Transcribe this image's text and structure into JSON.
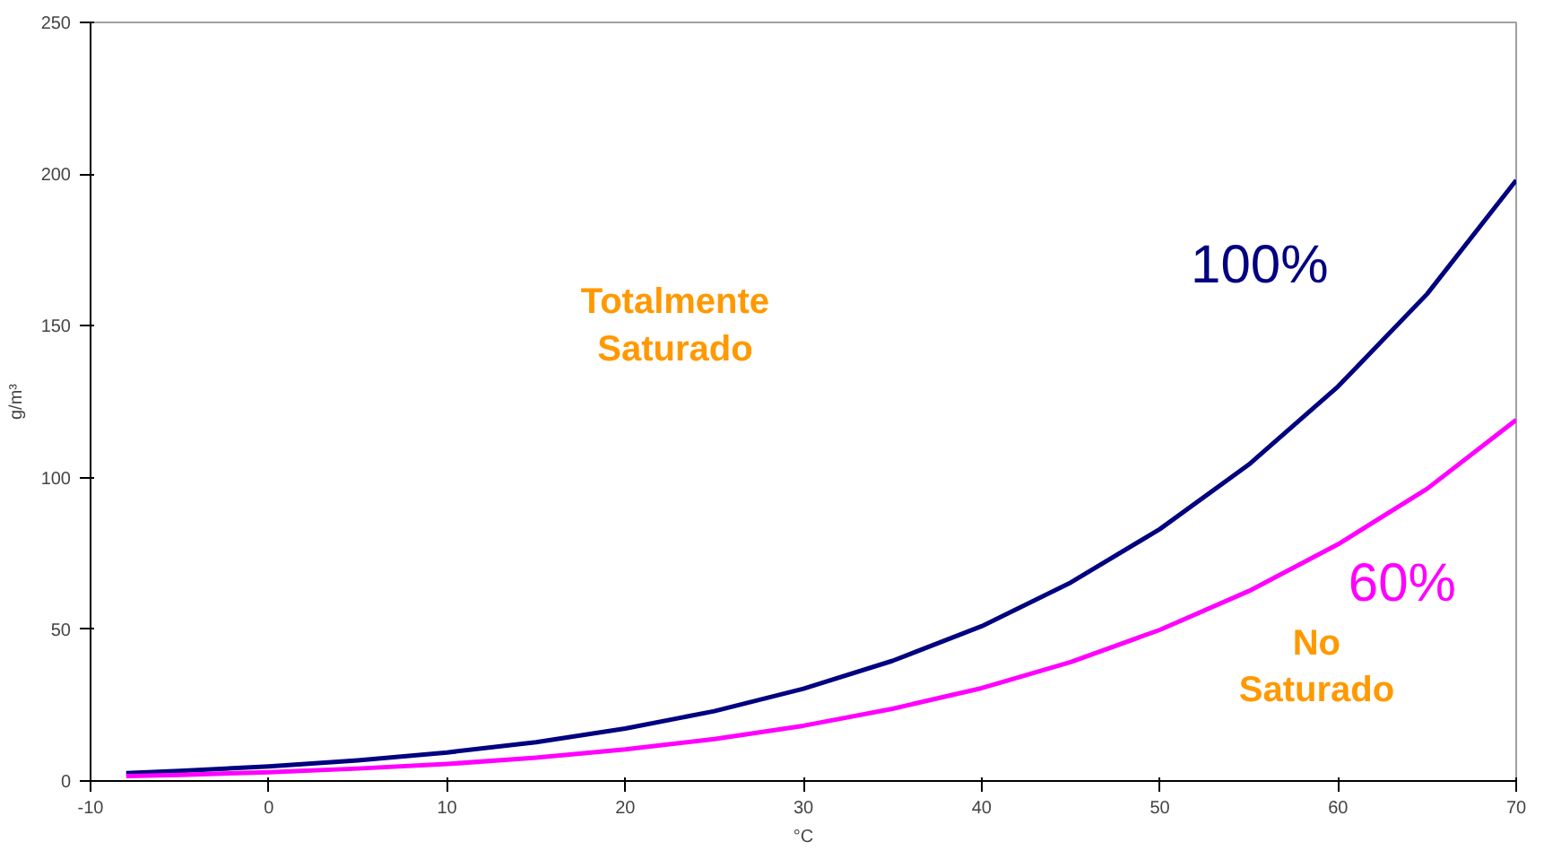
{
  "chart_data": {
    "type": "line",
    "xlabel": "°C",
    "ylabel": "g/m³",
    "x": [
      -8,
      -5,
      0,
      5,
      10,
      15,
      20,
      25,
      30,
      35,
      40,
      45,
      50,
      55,
      60,
      65,
      70
    ],
    "series": [
      {
        "name": "100%",
        "color": "#000080",
        "values": [
          2.6,
          3.3,
          4.8,
          6.8,
          9.4,
          12.8,
          17.3,
          23,
          30.4,
          39.6,
          51,
          65.4,
          83,
          104.3,
          130,
          160.5,
          198
        ]
      },
      {
        "name": "60%",
        "color": "#ff00ff",
        "values": [
          1.6,
          2.0,
          2.9,
          4.1,
          5.6,
          7.7,
          10.4,
          13.8,
          18.2,
          23.8,
          30.6,
          39.2,
          49.8,
          62.6,
          78,
          96.3,
          119
        ]
      }
    ],
    "annotations": [
      "Totalmente\nSaturado",
      "No\nSaturado"
    ],
    "xlim": [
      -10,
      70
    ],
    "ylim": [
      0,
      250
    ],
    "xticks": [
      -10,
      0,
      10,
      20,
      30,
      40,
      50,
      60,
      70
    ],
    "yticks": [
      0,
      50,
      100,
      150,
      200,
      250
    ],
    "grid": false,
    "marker": "none",
    "line_style": "solid"
  }
}
